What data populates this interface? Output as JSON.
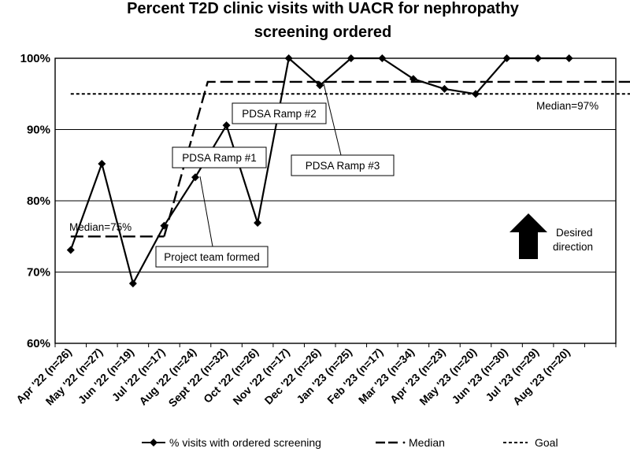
{
  "chart_data": {
    "type": "line",
    "title_line1": "Percent T2D clinic visits with UACR for nephropathy",
    "title_line2": "screening ordered",
    "categories": [
      "Apr '22 (n=26)",
      "May '22 (n=27)",
      "Jun '22 (n=19)",
      "Jul '22 (n=17)",
      "Aug '22 (n=24)",
      "Sept '22 (n=32)",
      "Oct '22 (n=26)",
      "Nov '22 (n=17)",
      "Dec '22 (n=26)",
      "Jan '23 (n=25)",
      "Feb '23 (n=17)",
      "Mar '23 (n=34)",
      "Apr '23 (n=23)",
      "May '23 (n=20)",
      "Jun '23 (n=30)",
      "Jul '23 (n=29)",
      "Aug '23 (n=20)"
    ],
    "ylim": [
      60,
      100
    ],
    "yticks": [
      60,
      70,
      80,
      90,
      100
    ],
    "ytick_labels": [
      "60%",
      "70%",
      "80%",
      "90%",
      "100%"
    ],
    "series": [
      {
        "name": "% visits with ordered screening",
        "style": "solid-diamond",
        "values": [
          73.1,
          85.2,
          68.4,
          76.5,
          83.3,
          90.6,
          76.9,
          100,
          96.2,
          100,
          100,
          97.1,
          95.7,
          95,
          100,
          100,
          100
        ]
      },
      {
        "name": "Median",
        "style": "long-dash",
        "segments": [
          {
            "points": [
              [
                0,
                75
              ],
              [
                3,
                75
              ]
            ]
          },
          {
            "points": [
              [
                3,
                75
              ],
              [
                4.4,
                96.7
              ],
              [
                18,
                96.7
              ]
            ]
          }
        ]
      },
      {
        "name": "Goal",
        "style": "short-dash",
        "segments": [
          {
            "points": [
              [
                0,
                95
              ],
              [
                18,
                95
              ]
            ]
          }
        ]
      }
    ],
    "annotations": {
      "median_early": "Median=75%",
      "median_late": "Median=97%",
      "ramp1": "PDSA Ramp #1",
      "ramp2": "PDSA Ramp #2",
      "ramp3": "PDSA Ramp #3",
      "team": "Project team formed",
      "desired_line1": "Desired",
      "desired_line2": "direction"
    },
    "legend": {
      "position": "bottom",
      "items": [
        "% visits with ordered screening",
        "Median",
        "Goal"
      ]
    }
  }
}
